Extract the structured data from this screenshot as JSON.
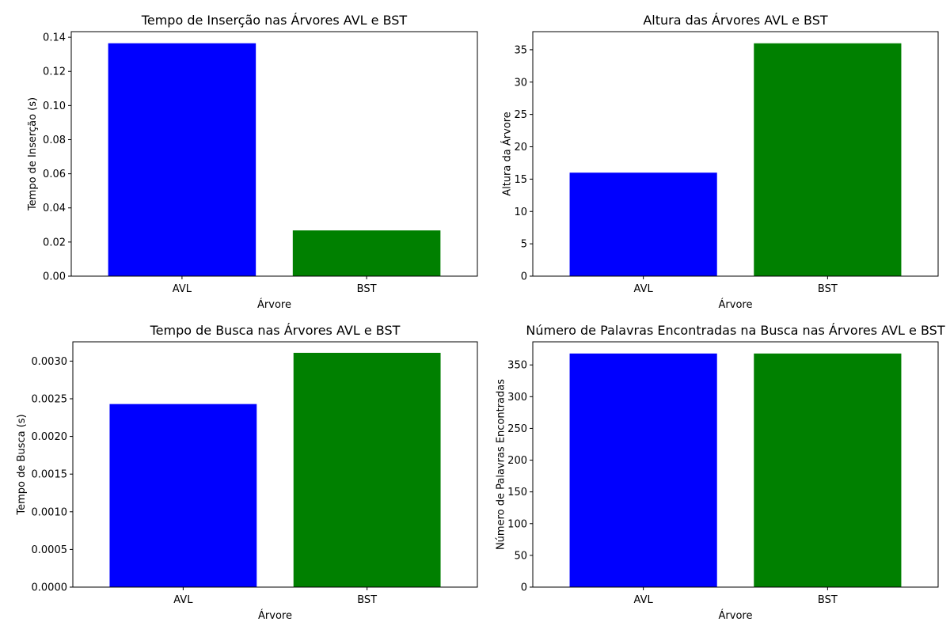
{
  "chart_data": [
    {
      "type": "bar",
      "title": "Tempo de Inserção nas Árvores AVL e BST",
      "xlabel": "Árvore",
      "ylabel": "Tempo de Inserção (s)",
      "categories": [
        "AVL",
        "BST"
      ],
      "values": [
        0.1365,
        0.0268
      ],
      "colors": [
        "#0000ff",
        "#008000"
      ],
      "ylim": [
        0,
        0.1433
      ],
      "yticks": [
        0,
        0.02,
        0.04,
        0.06,
        0.08,
        0.1,
        0.12,
        0.14
      ],
      "ytick_labels": [
        "0.00",
        "0.02",
        "0.04",
        "0.06",
        "0.08",
        "0.10",
        "0.12",
        "0.14"
      ],
      "grid": false
    },
    {
      "type": "bar",
      "title": "Altura das Árvores AVL e BST",
      "xlabel": "Árvore",
      "ylabel": "Altura da Árvore",
      "categories": [
        "AVL",
        "BST"
      ],
      "values": [
        16,
        36
      ],
      "colors": [
        "#0000ff",
        "#008000"
      ],
      "ylim": [
        0,
        37.8
      ],
      "yticks": [
        0,
        5,
        10,
        15,
        20,
        25,
        30,
        35
      ],
      "ytick_labels": [
        "0",
        "5",
        "10",
        "15",
        "20",
        "25",
        "30",
        "35"
      ],
      "grid": false
    },
    {
      "type": "bar",
      "title": "Tempo de Busca nas Árvores AVL e BST",
      "xlabel": "Árvore",
      "ylabel": "Tempo de Busca (s)",
      "categories": [
        "AVL",
        "BST"
      ],
      "values": [
        0.00243,
        0.00311
      ],
      "colors": [
        "#0000ff",
        "#008000"
      ],
      "ylim": [
        0,
        0.003256
      ],
      "yticks": [
        0,
        0.0005,
        0.001,
        0.0015,
        0.002,
        0.0025,
        0.003
      ],
      "ytick_labels": [
        "0.0000",
        "0.0005",
        "0.0010",
        "0.0015",
        "0.0020",
        "0.0025",
        "0.0030"
      ],
      "grid": false
    },
    {
      "type": "bar",
      "title": "Número de Palavras Encontradas na Busca nas Árvores AVL e BST",
      "xlabel": "Árvore",
      "ylabel": "Número de Palavras Encontradas",
      "categories": [
        "AVL",
        "BST"
      ],
      "values": [
        368,
        368
      ],
      "colors": [
        "#0000ff",
        "#008000"
      ],
      "ylim": [
        0,
        386.4
      ],
      "yticks": [
        0,
        50,
        100,
        150,
        200,
        250,
        300,
        350
      ],
      "ytick_labels": [
        "0",
        "50",
        "100",
        "150",
        "200",
        "250",
        "300",
        "350"
      ],
      "grid": false
    }
  ]
}
